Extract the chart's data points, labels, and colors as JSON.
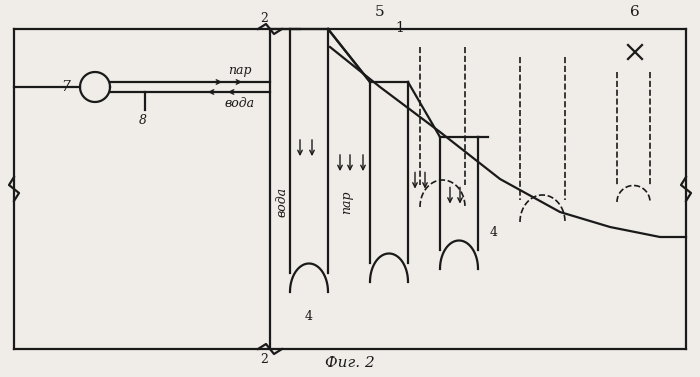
{
  "bg_color": "#f0ede8",
  "line_color": "#1a1a1a",
  "fig_label": "Фиг. 2",
  "label_7": "7",
  "label_8": "8",
  "label_5": "5",
  "label_1": "1",
  "label_6": "6",
  "label_2t": "2",
  "label_2b": "2",
  "label_4a": "4",
  "label_4b": "4",
  "label_par_h": "пар",
  "label_voda_h": "вода",
  "label_voda_v": "вода",
  "label_par_v": "пар"
}
